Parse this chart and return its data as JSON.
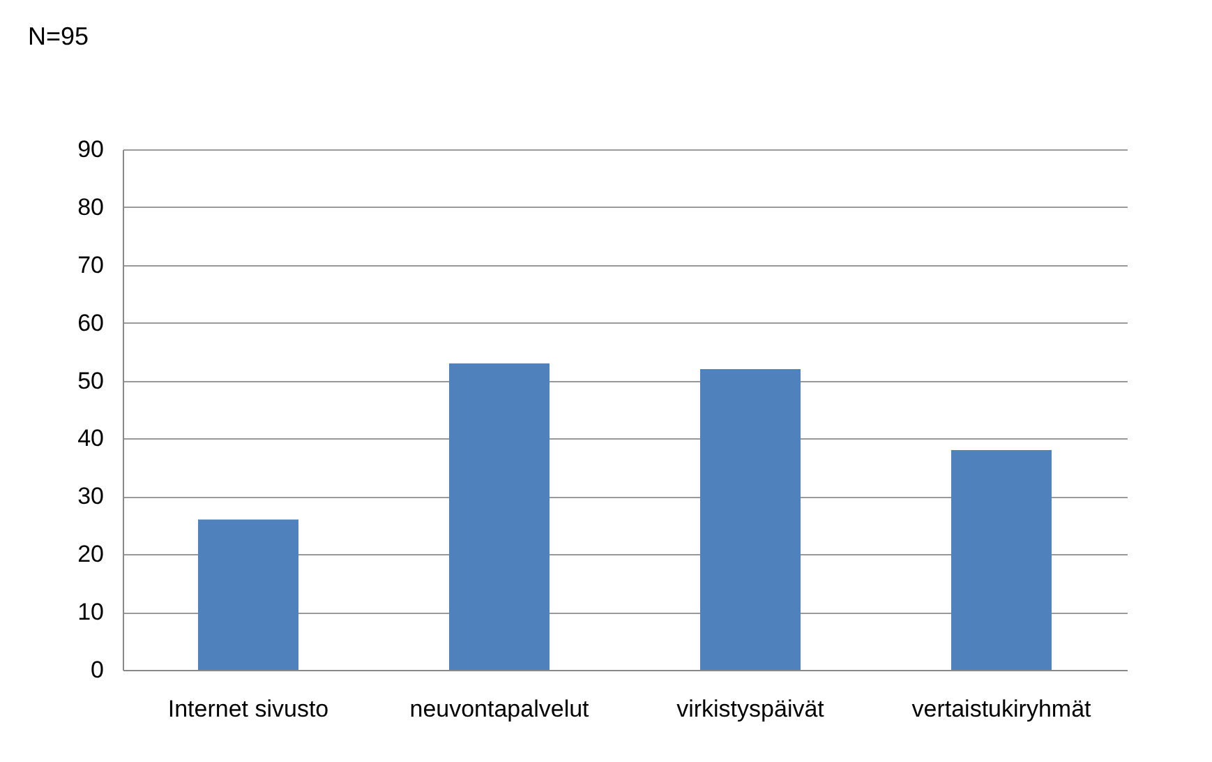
{
  "chart_data": {
    "type": "bar",
    "title": "N=95",
    "categories": [
      "Internet sivusto",
      "neuvontapalvelut",
      "virkistyspäivät",
      "vertaistukiryhmät"
    ],
    "values": [
      26,
      53,
      52,
      38
    ],
    "color": "#4f81bd",
    "ylim": [
      0,
      90
    ],
    "yticks": [
      0,
      10,
      20,
      30,
      40,
      50,
      60,
      70,
      80,
      90
    ],
    "grid": "y"
  }
}
